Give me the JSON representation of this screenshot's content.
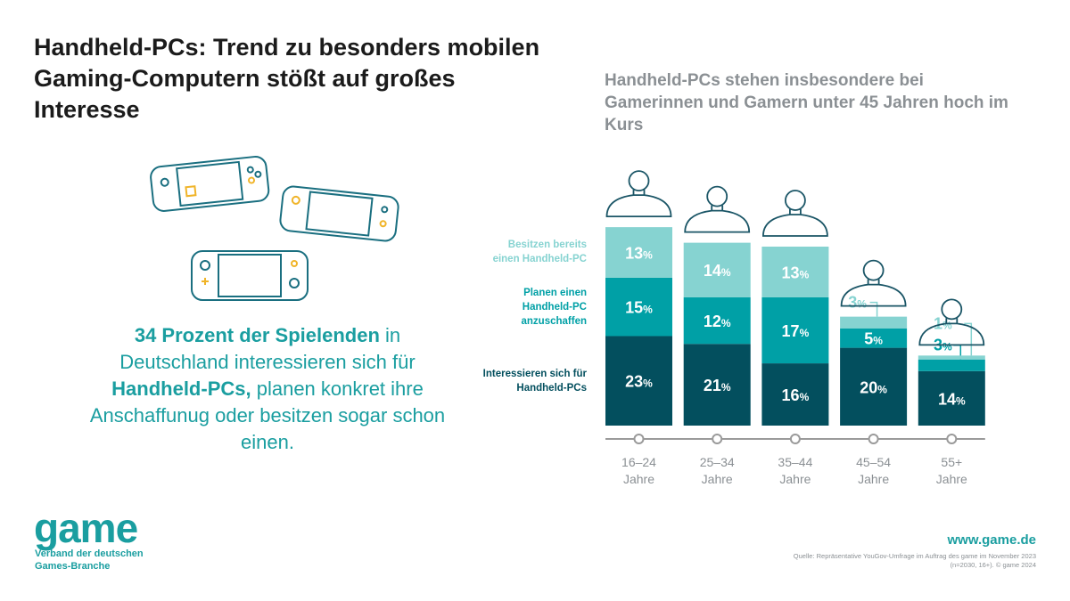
{
  "title": "Handheld-PCs: Trend zu besonders mobilen Gaming-Computern stößt auf großes Interesse",
  "lead": {
    "strong1": "34 Prozent der Spielenden",
    "text1": " in Deutschland interessieren sich für ",
    "strong2": "Handheld-PCs,",
    "text2": " planen konkret ihre Anschaffunug oder besitzen sogar schon einen."
  },
  "footer": {
    "logo": "game",
    "logo_sub": "Verband der deutschen Games-Branche",
    "url": "www.game.de",
    "source": "Quelle: Repräsentative YouGov-Umfrage im Auftrag des game im November 2023 (n=2030, 16+). © game 2024"
  },
  "chart_data": {
    "type": "bar",
    "stacked": true,
    "title": "Handheld-PCs stehen insbesondere bei Gamerinnen und Gamern unter 45 Jahren hoch im Kurs",
    "categories": [
      "16–24 Jahre",
      "25–34 Jahre",
      "35–44 Jahre",
      "45–54 Jahre",
      "55+ Jahre"
    ],
    "unit": "%",
    "series": [
      {
        "name": "Interessieren sich für Handheld-PCs",
        "values": [
          23,
          21,
          16,
          20,
          14
        ],
        "color": "#034f5e"
      },
      {
        "name": "Planen einen Handheld-PC anzuschaffen",
        "values": [
          15,
          12,
          17,
          5,
          3
        ],
        "color": "#00a0a6"
      },
      {
        "name": "Besitzen bereits einen Handheld-PC",
        "values": [
          13,
          14,
          13,
          3,
          1
        ],
        "color": "#86d3d1"
      }
    ],
    "legend": "left",
    "grid": false
  }
}
